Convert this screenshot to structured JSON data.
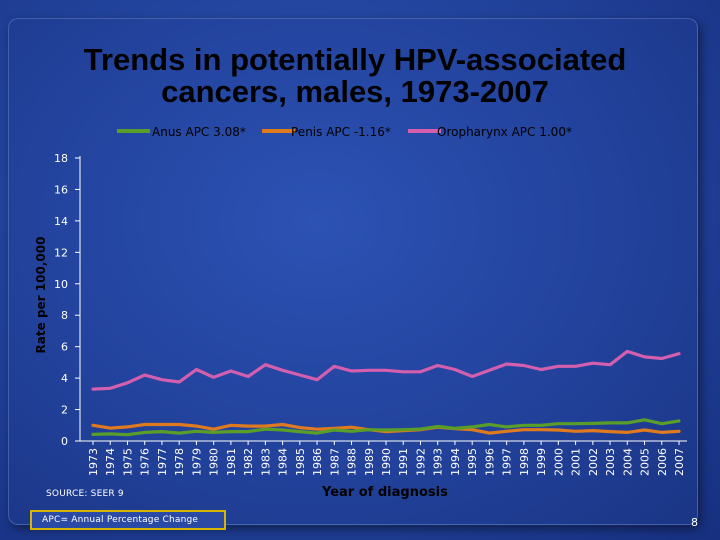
{
  "slide": {
    "title_line1": "Trends in potentially HPV-associated",
    "title_line2": "cancers, males, 1973-2007",
    "source": "SOURCE: SEER 9",
    "apc_note": "APC= Annual Percentage Change",
    "page_number": "8"
  },
  "colors": {
    "anus": "#5a9e2a",
    "penis": "#e07a1f",
    "oropharynx": "#d45fae",
    "axis": "#ffffff",
    "tick_text": "#ffffff"
  },
  "chart_data": {
    "type": "line",
    "title": "Trends in potentially HPV-associated cancers, males, 1973-2007",
    "xlabel": "Year of diagnosis",
    "ylabel": "Rate per 100,000",
    "ylim": [
      0,
      18
    ],
    "yticks": [
      0,
      2,
      4,
      6,
      8,
      10,
      12,
      14,
      16,
      18
    ],
    "grid": false,
    "legend_position": "top",
    "x": [
      "1973",
      "1974",
      "1975",
      "1976",
      "1977",
      "1978",
      "1979",
      "1980",
      "1981",
      "1982",
      "1983",
      "1984",
      "1985",
      "1986",
      "1987",
      "1988",
      "1989",
      "1990",
      "1991",
      "1992",
      "1993",
      "1994",
      "1995",
      "1996",
      "1997",
      "1998",
      "1999",
      "2000",
      "2001",
      "2002",
      "2003",
      "2004",
      "2005",
      "2006",
      "2007"
    ],
    "series": [
      {
        "name": "Anus APC 3.08*",
        "key": "anus",
        "values": [
          0.42,
          0.45,
          0.4,
          0.55,
          0.6,
          0.5,
          0.62,
          0.55,
          0.6,
          0.6,
          0.75,
          0.7,
          0.6,
          0.5,
          0.7,
          0.62,
          0.72,
          0.7,
          0.72,
          0.76,
          0.92,
          0.8,
          0.9,
          1.05,
          0.9,
          1.0,
          1.0,
          1.1,
          1.1,
          1.12,
          1.15,
          1.15,
          1.35,
          1.1,
          1.28
        ]
      },
      {
        "name": "Penis APC -1.16*",
        "key": "penis",
        "values": [
          1.0,
          0.82,
          0.9,
          1.05,
          1.05,
          1.05,
          0.95,
          0.75,
          1.0,
          0.95,
          0.95,
          1.05,
          0.85,
          0.75,
          0.8,
          0.88,
          0.72,
          0.6,
          0.66,
          0.72,
          0.88,
          0.78,
          0.72,
          0.5,
          0.62,
          0.72,
          0.72,
          0.7,
          0.62,
          0.66,
          0.6,
          0.55,
          0.7,
          0.55,
          0.62
        ]
      },
      {
        "name": "Oropharynx APC 1.00*",
        "key": "oropharynx",
        "values": [
          3.3,
          3.35,
          3.7,
          4.2,
          3.9,
          3.75,
          4.55,
          4.05,
          4.45,
          4.1,
          4.85,
          4.5,
          4.2,
          3.9,
          4.75,
          4.45,
          4.5,
          4.5,
          4.4,
          4.4,
          4.8,
          4.55,
          4.1,
          4.5,
          4.9,
          4.8,
          4.55,
          4.75,
          4.75,
          4.95,
          4.85,
          5.7,
          5.35,
          5.25,
          5.55
        ]
      }
    ]
  }
}
